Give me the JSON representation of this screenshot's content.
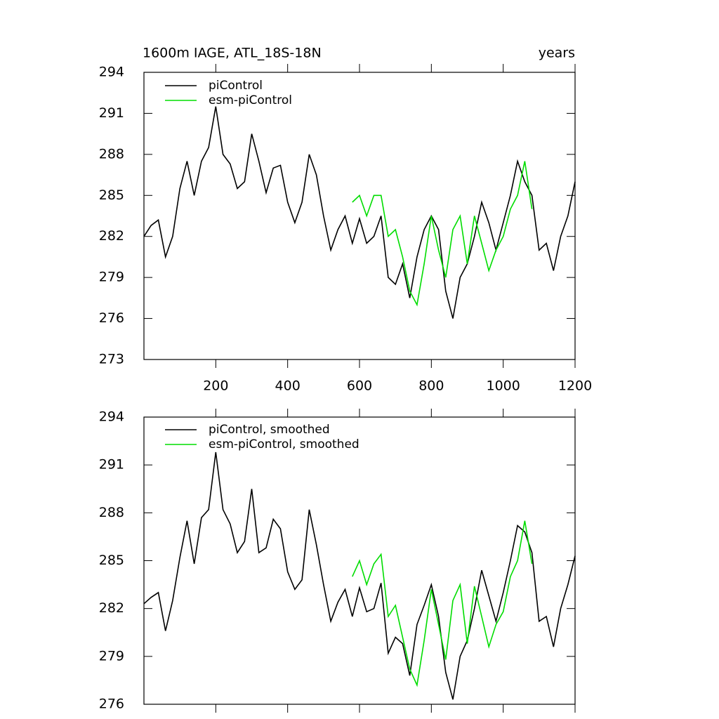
{
  "chart_data": [
    {
      "type": "line",
      "title": "1600m IAGE, ATL_18S-18N",
      "right_title": "years",
      "x": [
        0,
        20,
        40,
        60,
        80,
        100,
        120,
        140,
        160,
        180,
        200,
        220,
        240,
        260,
        280,
        300,
        320,
        340,
        360,
        380,
        400,
        420,
        440,
        460,
        480,
        500,
        520,
        540,
        560,
        580,
        600,
        620,
        640,
        660,
        680,
        700,
        720,
        740,
        760,
        780,
        800,
        820,
        840,
        860,
        880,
        900,
        920,
        940,
        960,
        980,
        1000,
        1020,
        1040,
        1060,
        1080,
        1100,
        1120,
        1140,
        1160,
        1180,
        1200
      ],
      "series": [
        {
          "name": "piControl",
          "color": "#000000",
          "values": [
            282,
            282.8,
            283.2,
            280.5,
            282,
            285.5,
            287.5,
            285,
            287.5,
            288.5,
            291.5,
            288,
            287.3,
            285.5,
            286,
            289.5,
            287.5,
            285.2,
            287,
            287.2,
            284.5,
            283,
            284.5,
            288,
            286.5,
            283.5,
            281,
            282.5,
            283.5,
            281.5,
            283.3,
            281.5,
            282,
            283.5,
            279,
            278.5,
            280,
            277.5,
            280.5,
            282.5,
            283.5,
            282.5,
            278,
            276,
            279,
            280,
            282,
            284.5,
            283,
            281,
            283,
            285,
            287.5,
            286,
            285,
            281,
            281.5,
            279.5,
            282,
            283.5,
            286
          ]
        },
        {
          "name": "esm-piControl",
          "color": "#00dd00",
          "values": [
            null,
            null,
            null,
            null,
            null,
            null,
            null,
            null,
            null,
            null,
            null,
            null,
            null,
            null,
            null,
            null,
            null,
            null,
            null,
            null,
            null,
            null,
            null,
            null,
            null,
            null,
            null,
            null,
            null,
            284.5,
            285,
            283.5,
            285,
            285,
            282,
            282.5,
            280.5,
            278,
            277,
            280,
            283.5,
            281,
            279,
            282.5,
            283.5,
            280,
            283.5,
            281.5,
            279.5,
            281,
            282,
            284,
            285,
            287.5,
            284,
            null,
            null,
            null,
            null,
            null,
            null
          ]
        }
      ],
      "xlim": [
        0,
        1200
      ],
      "xticks": [
        200,
        400,
        600,
        800,
        1000,
        1200
      ],
      "ylim": [
        273,
        294
      ],
      "yticks": [
        273,
        276,
        279,
        282,
        285,
        288,
        291,
        294
      ]
    },
    {
      "type": "line",
      "x": [
        0,
        20,
        40,
        60,
        80,
        100,
        120,
        140,
        160,
        180,
        200,
        220,
        240,
        260,
        280,
        300,
        320,
        340,
        360,
        380,
        400,
        420,
        440,
        460,
        480,
        500,
        520,
        540,
        560,
        580,
        600,
        620,
        640,
        660,
        680,
        700,
        720,
        740,
        760,
        780,
        800,
        820,
        840,
        860,
        880,
        900,
        920,
        940,
        960,
        980,
        1000,
        1020,
        1040,
        1060,
        1080,
        1100,
        1120,
        1140,
        1160,
        1180,
        1200
      ],
      "series": [
        {
          "name": "piControl, smoothed",
          "color": "#000000",
          "values": [
            282.3,
            282.7,
            283,
            280.6,
            282.5,
            285.2,
            287.5,
            284.8,
            287.7,
            288.2,
            291.8,
            288.2,
            287.3,
            285.5,
            286.2,
            289.5,
            285.5,
            285.8,
            287.6,
            287,
            284.3,
            283.2,
            283.8,
            288.2,
            286,
            283.5,
            281.2,
            282.4,
            283.2,
            281.5,
            283.3,
            281.8,
            282,
            283.6,
            279.2,
            280.2,
            279.8,
            277.8,
            281,
            282.2,
            283.5,
            281.5,
            278,
            276.3,
            279,
            280,
            282,
            284.4,
            282.8,
            281.2,
            283,
            285,
            287.2,
            286.8,
            285.5,
            281.2,
            281.5,
            279.6,
            282,
            283.5,
            285.3
          ]
        },
        {
          "name": "esm-piControl, smoothed",
          "color": "#00dd00",
          "values": [
            null,
            null,
            null,
            null,
            null,
            null,
            null,
            null,
            null,
            null,
            null,
            null,
            null,
            null,
            null,
            null,
            null,
            null,
            null,
            null,
            null,
            null,
            null,
            null,
            null,
            null,
            null,
            null,
            null,
            284,
            285,
            283.5,
            284.8,
            285.4,
            281.5,
            282.2,
            280.2,
            278.2,
            277.2,
            280,
            283.2,
            281,
            278.8,
            282.5,
            283.5,
            279.8,
            283.4,
            281.5,
            279.6,
            281,
            281.8,
            284,
            285,
            287.5,
            284.8,
            null,
            null,
            null,
            null,
            null,
            null
          ]
        }
      ],
      "xlim": [
        0,
        1200
      ],
      "xticks": [
        200,
        400,
        600,
        800,
        1000,
        1200
      ],
      "ylim": [
        276,
        294
      ],
      "yticks": [
        276,
        279,
        282,
        285,
        288,
        291,
        294
      ]
    }
  ]
}
